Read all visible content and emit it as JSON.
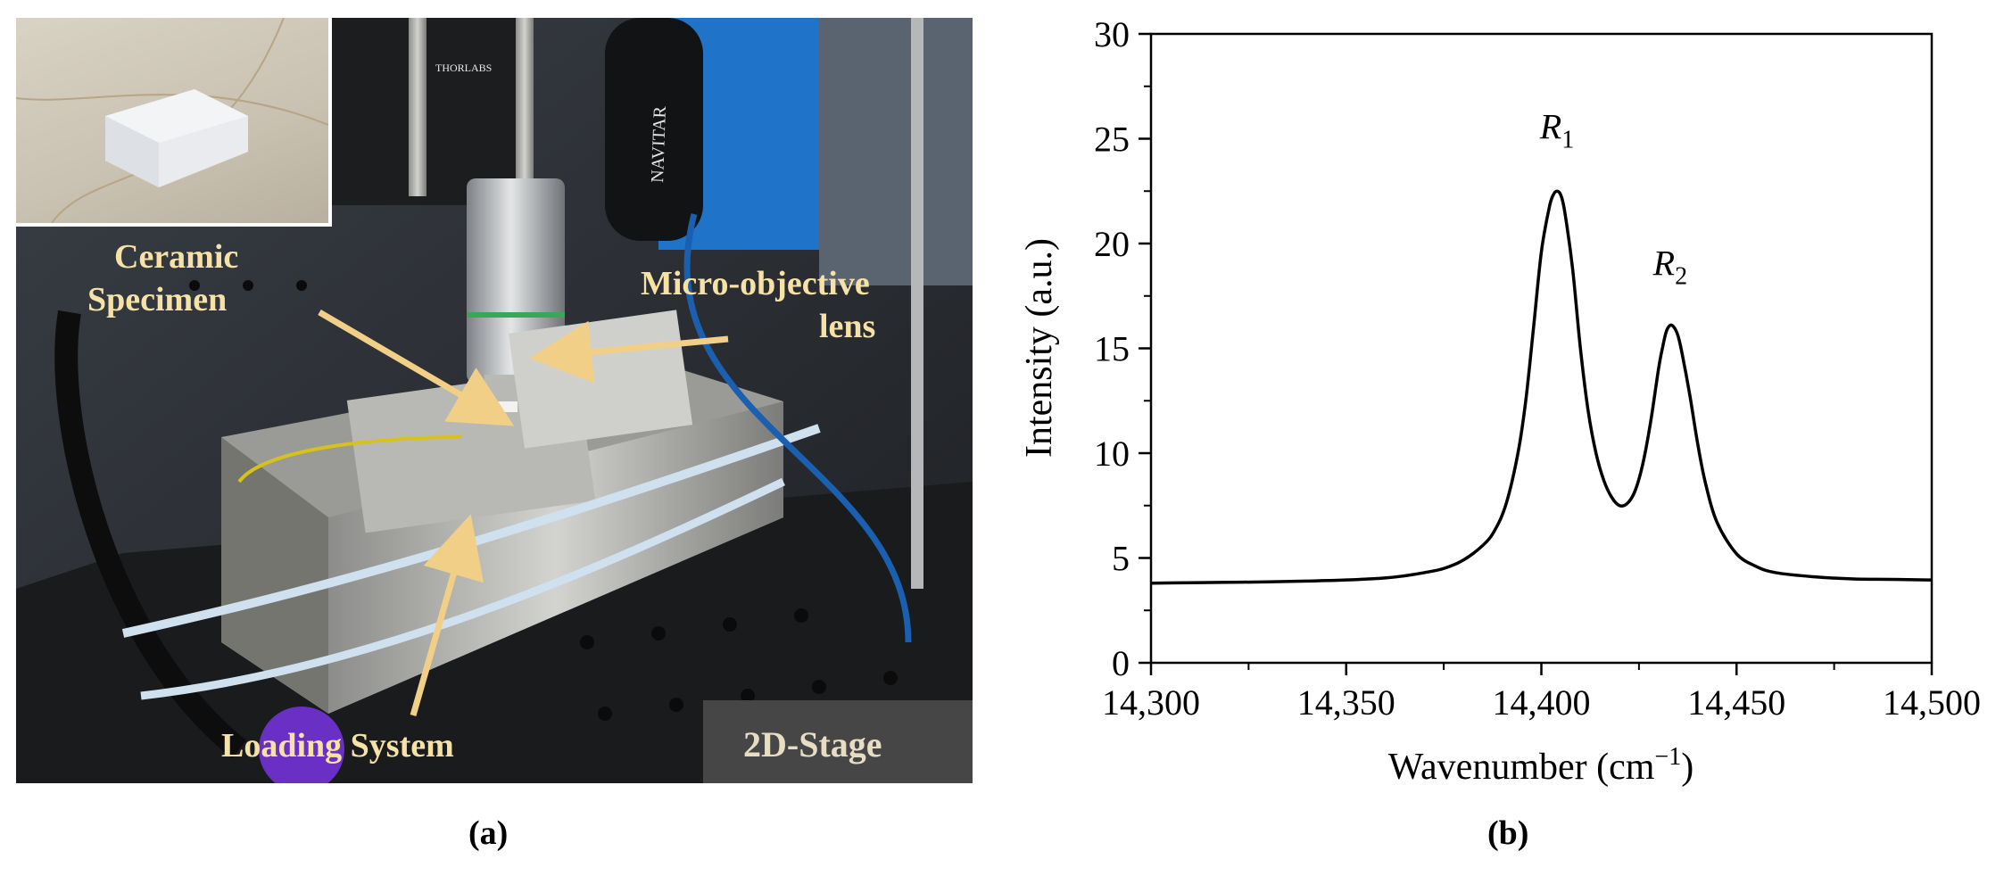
{
  "panel_labels": {
    "a": "(a)",
    "b": "(b)"
  },
  "photo": {
    "annotations": {
      "ceramic_specimen_line1": "Ceramic",
      "ceramic_specimen_line2": "Specimen",
      "micro_objective_line1": "Micro-objective",
      "micro_objective_line2": "lens",
      "loading_system": "Loading System",
      "stage_2d": "2D-Stage"
    },
    "equipment_text": {
      "thorlabs": "THORLABS",
      "navitar": "NAVITAR"
    },
    "colors": {
      "annotation_text": "#f6e2a6",
      "arrow": "#f1cf86",
      "stage_box": "#4a4a4a"
    }
  },
  "chart_data": {
    "type": "line",
    "xlabel": "Wavenumber (cm",
    "xlabel_sup": "−1",
    "xlabel_close": ")",
    "ylabel": "Intensity (a.u.)",
    "xlim": [
      14300,
      14500
    ],
    "ylim": [
      0,
      30
    ],
    "x_ticks": [
      14300,
      14350,
      14400,
      14450,
      14500
    ],
    "x_tick_labels": [
      "14,300",
      "14,350",
      "14,400",
      "14,450",
      "14,500"
    ],
    "y_ticks": [
      0,
      5,
      10,
      15,
      20,
      25,
      30
    ],
    "y_tick_labels": [
      "0",
      "5",
      "10",
      "15",
      "20",
      "25",
      "30"
    ],
    "annotations": [
      {
        "base": "R",
        "sub": "1",
        "x": 14404,
        "y": 25.0
      },
      {
        "base": "R",
        "sub": "2",
        "x": 14433,
        "y": 18.5
      }
    ],
    "series": [
      {
        "color": "#000000",
        "x": [
          14300,
          14310,
          14320,
          14330,
          14340,
          14350,
          14360,
          14365,
          14370,
          14375,
          14380,
          14385,
          14388,
          14391,
          14394,
          14396,
          14398,
          14400,
          14402,
          14403,
          14404,
          14405,
          14406,
          14408,
          14410,
          14412,
          14414,
          14416,
          14418,
          14420,
          14422,
          14424,
          14426,
          14428,
          14430,
          14431,
          14432,
          14433,
          14434,
          14435,
          14436,
          14438,
          14440,
          14442,
          14445,
          14450,
          14455,
          14460,
          14470,
          14480,
          14490,
          14500
        ],
        "values": [
          3.8,
          3.82,
          3.84,
          3.86,
          3.9,
          3.95,
          4.05,
          4.15,
          4.3,
          4.5,
          4.9,
          5.6,
          6.3,
          7.6,
          10.0,
          12.5,
          16.0,
          19.6,
          21.7,
          22.3,
          22.5,
          22.3,
          21.5,
          18.8,
          15.0,
          12.0,
          10.0,
          8.7,
          7.9,
          7.5,
          7.6,
          8.2,
          9.5,
          11.5,
          14.0,
          15.0,
          15.8,
          16.1,
          16.0,
          15.6,
          14.8,
          12.8,
          10.5,
          8.6,
          6.7,
          5.2,
          4.6,
          4.3,
          4.1,
          4.0,
          3.98,
          3.95
        ]
      }
    ]
  }
}
